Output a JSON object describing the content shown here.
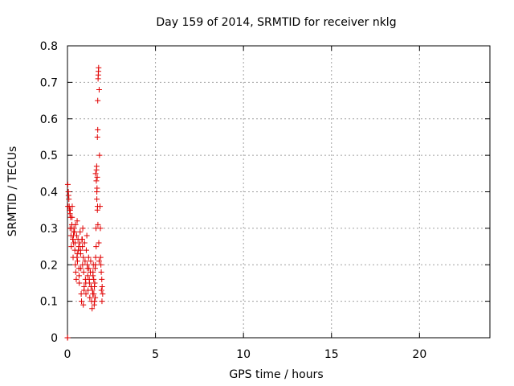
{
  "chart_data": {
    "type": "scatter",
    "title": "Day 159 of 2014, SRMTID for receiver nklg",
    "xlabel": "GPS time / hours",
    "ylabel": "SRMTID / TECUs",
    "xlim": [
      0,
      24
    ],
    "ylim": [
      0,
      0.8
    ],
    "xticks": [
      0,
      5,
      10,
      15,
      20
    ],
    "xtick_labels": [
      "0",
      "5",
      "10",
      "15",
      "20"
    ],
    "yticks": [
      0,
      0.1,
      0.2,
      0.3,
      0.4,
      0.5,
      0.6,
      0.7,
      0.8
    ],
    "ytick_labels": [
      "0",
      "0.1",
      "0.2",
      "0.3",
      "0.4",
      "0.5",
      "0.6",
      "0.7",
      "0.8"
    ],
    "grid": true,
    "marker": "+",
    "series_color": "#e00000",
    "series": [
      {
        "name": "SRMTID",
        "x": [
          0.0,
          0.02,
          0.05,
          0.08,
          0.12,
          0.15,
          0.18,
          0.2,
          0.22,
          0.25,
          0.27,
          0.3,
          0.32,
          0.35,
          0.37,
          0.4,
          0.42,
          0.45,
          0.47,
          0.5,
          0.52,
          0.55,
          0.57,
          0.6,
          0.62,
          0.65,
          0.67,
          0.7,
          0.72,
          0.75,
          0.78,
          0.8,
          0.82,
          0.85,
          0.87,
          0.9,
          0.92,
          0.95,
          0.97,
          1.0,
          1.02,
          1.05,
          1.07,
          1.1,
          1.12,
          1.15,
          1.17,
          1.2,
          1.22,
          1.25,
          1.27,
          1.3,
          1.32,
          1.35,
          1.37,
          1.4,
          1.42,
          1.45,
          1.47,
          1.5,
          1.52,
          1.55,
          1.57,
          1.6,
          1.62,
          1.65,
          1.67,
          1.7,
          1.72,
          1.75,
          1.77,
          1.8,
          1.82,
          1.85,
          1.87,
          1.9,
          1.92,
          1.95,
          1.97,
          2.0,
          0.06,
          0.1,
          0.14,
          0.24,
          0.34,
          0.44,
          0.54,
          0.64,
          0.74,
          0.84,
          0.94,
          1.04,
          1.14,
          1.24,
          1.34,
          1.44,
          1.54,
          1.6,
          1.64,
          1.66,
          1.68,
          1.7,
          1.72,
          1.74,
          1.76,
          1.78,
          1.8,
          1.73,
          1.71,
          1.69,
          1.67,
          1.63,
          1.59,
          1.45,
          1.49,
          1.53,
          1.58,
          0.9,
          0.86,
          0.76,
          0.66,
          0.56,
          0.46,
          0.36,
          0.26,
          0.16,
          0.03,
          0.0,
          0.01,
          1.96,
          1.93,
          1.88
        ],
        "y": [
          0.0,
          0.42,
          0.4,
          0.38,
          0.35,
          0.3,
          0.33,
          0.28,
          0.25,
          0.31,
          0.36,
          0.27,
          0.22,
          0.26,
          0.3,
          0.29,
          0.24,
          0.2,
          0.18,
          0.16,
          0.28,
          0.32,
          0.21,
          0.27,
          0.24,
          0.19,
          0.15,
          0.26,
          0.29,
          0.23,
          0.12,
          0.1,
          0.27,
          0.25,
          0.3,
          0.22,
          0.18,
          0.14,
          0.26,
          0.21,
          0.16,
          0.12,
          0.24,
          0.28,
          0.2,
          0.17,
          0.13,
          0.22,
          0.19,
          0.15,
          0.11,
          0.18,
          0.21,
          0.14,
          0.1,
          0.08,
          0.13,
          0.17,
          0.2,
          0.12,
          0.09,
          0.15,
          0.19,
          0.22,
          0.3,
          0.46,
          0.4,
          0.55,
          0.65,
          0.72,
          0.74,
          0.68,
          0.5,
          0.36,
          0.3,
          0.2,
          0.18,
          0.16,
          0.14,
          0.12,
          0.39,
          0.36,
          0.34,
          0.3,
          0.28,
          0.26,
          0.22,
          0.25,
          0.24,
          0.27,
          0.13,
          0.15,
          0.19,
          0.16,
          0.14,
          0.12,
          0.1,
          0.45,
          0.43,
          0.47,
          0.41,
          0.35,
          0.57,
          0.71,
          0.73,
          0.26,
          0.21,
          0.31,
          0.36,
          0.44,
          0.38,
          0.25,
          0.2,
          0.18,
          0.16,
          0.14,
          0.11,
          0.09,
          0.2,
          0.19,
          0.17,
          0.23,
          0.31,
          0.29,
          0.33,
          0.35,
          0.36,
          0.0,
          0.0,
          0.1,
          0.13,
          0.22
        ]
      }
    ]
  }
}
